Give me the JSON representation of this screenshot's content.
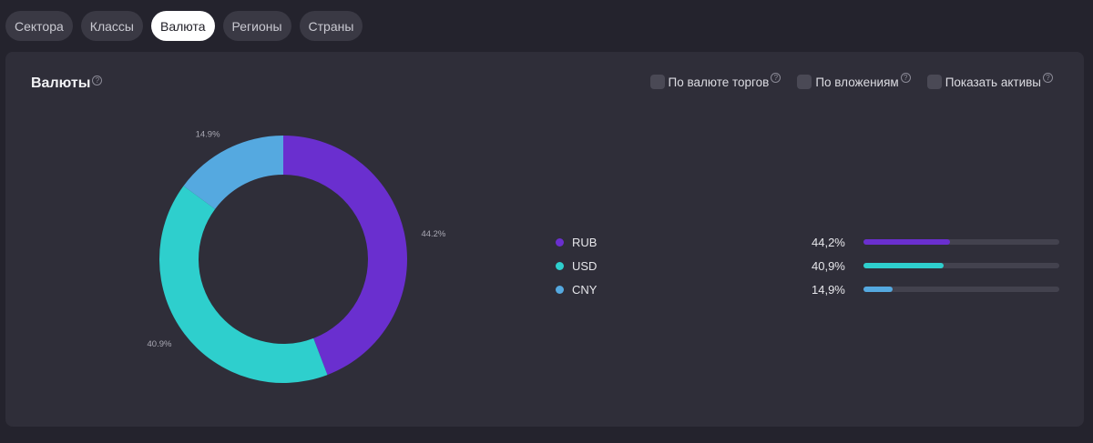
{
  "tabs": [
    {
      "label": "Сектора",
      "active": false
    },
    {
      "label": "Классы",
      "active": false
    },
    {
      "label": "Валюта",
      "active": true
    },
    {
      "label": "Регионы",
      "active": false
    },
    {
      "label": "Страны",
      "active": false
    }
  ],
  "card": {
    "title": "Валюты",
    "help_icon": "?"
  },
  "filters": [
    {
      "label": "По валюте торгов",
      "checked": false
    },
    {
      "label": "По вложениям",
      "checked": false
    },
    {
      "label": "Показать активы",
      "checked": false
    }
  ],
  "chart_data": {
    "type": "pie",
    "variant": "donut",
    "categories": [
      "RUB",
      "USD",
      "CNY"
    ],
    "values": [
      44.2,
      40.9,
      14.9
    ],
    "slice_labels": [
      "44.2%",
      "40.9%",
      "14.9%"
    ],
    "legend_values": [
      "44,2%",
      "40,9%",
      "14,9%"
    ],
    "colors": [
      "#6a2fcf",
      "#2ecfcd",
      "#55a9e0"
    ],
    "legend_placement": "right"
  }
}
